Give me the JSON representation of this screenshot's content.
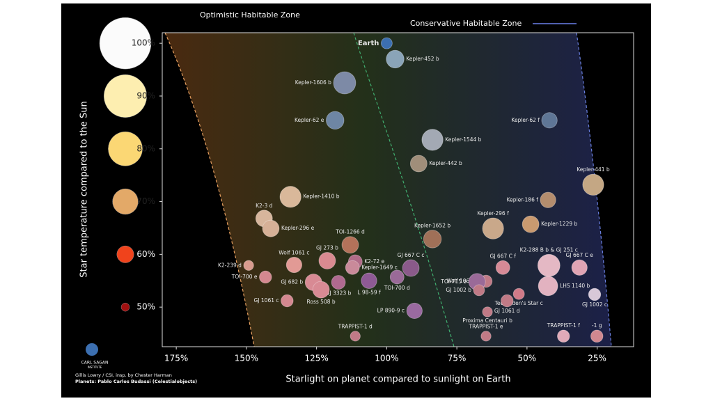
{
  "chart_data": {
    "type": "scatter",
    "zones": [
      "Optimistic Habitable Zone",
      "Conservative Habitable Zone"
    ],
    "xlabel": "Starlight on planet compared to sunlight on Earth",
    "ylabel": "Star temperature compared to the Sun",
    "xlim": [
      180,
      12
    ],
    "ylim": [
      42.5,
      102
    ],
    "xticks": [
      {
        "value": 175,
        "label": "175%"
      },
      {
        "value": 150,
        "label": "150%"
      },
      {
        "value": 125,
        "label": "125%"
      },
      {
        "value": 100,
        "label": "100%"
      },
      {
        "value": 75,
        "label": "75%"
      },
      {
        "value": 50,
        "label": "50%"
      },
      {
        "value": 25,
        "label": "25%"
      }
    ],
    "yticks": [
      {
        "value": 100,
        "label": "100%"
      },
      {
        "value": 90,
        "label": "90%"
      },
      {
        "value": 80,
        "label": "80%"
      },
      {
        "value": 70,
        "label": "70%"
      },
      {
        "value": 60,
        "label": "60%"
      },
      {
        "value": 50,
        "label": "50%"
      }
    ],
    "star_colors": [
      "#fbfbfb",
      "#fdeeb0",
      "#fbd774",
      "#e3a968",
      "#f0431c",
      "#a01010"
    ],
    "labels": [
      "Earth",
      "Kepler-452 b",
      "Kepler-1606 b",
      "Kepler-62 e",
      "Kepler-62 f",
      "Kepler-1544 b",
      "Kepler-442 b",
      "Kepler-441 b",
      "Kepler-1410 b",
      "Kepler-186 f",
      "K2-3 d",
      "Kepler-296 e",
      "TOI-1266 d",
      "Kepler-1652 b",
      "Kepler-296 f",
      "Kepler-1229 b",
      "K2-239 d",
      "Wolf 1061 c",
      "GJ 273 b",
      "K2-72 e",
      "Kepler-1649 c",
      "GJ 667 C c",
      "K2-288 B b & GJ 251 c",
      "GJ 667 C f",
      "GJ 667 C e",
      "TOI-700 e",
      "GJ 682 b",
      "GJ 3323 b",
      "Ross 508 b",
      "L 98-59 f",
      "TOI-700 d",
      "Wolf 1069 b",
      "TOI-715 b",
      "LHS 1140 b",
      "GJ 1002 c",
      "Teegarden's Star c",
      "GJ 1061 c",
      "GJ 1002 b",
      "GJ 1061 d",
      "Proxima Centauri b",
      "LP 890-9 c",
      "TRAPPIST-1 d",
      "TRAPPIST-1 e",
      "TRAPPIST-1 f",
      "-1 g"
    ],
    "x": [
      100,
      97,
      115,
      118.4,
      42,
      83.7,
      88.6,
      26.4,
      134.3,
      42.5,
      143.7,
      141.3,
      113,
      83.7,
      62.1,
      48.7,
      149.2,
      133,
      121.2,
      111.2,
      112.2,
      91.4,
      42.2,
      58.6,
      31.3,
      143.2,
      126.1,
      117.2,
      123.4,
      106.3,
      96.3,
      64.6,
      67.8,
      42.5,
      25.9,
      52.9,
      135.5,
      67.1,
      57.1,
      64.1,
      90.1,
      111.2,
      64.6,
      37,
      25.1
    ],
    "y": [
      100,
      97,
      92.5,
      85.4,
      85.4,
      81.7,
      77.2,
      73.2,
      70.9,
      70.3,
      66.8,
      64.9,
      61.8,
      62.9,
      64.9,
      65.7,
      57.9,
      58,
      58.8,
      58.6,
      57.5,
      57.4,
      57.9,
      57.5,
      57.5,
      55.7,
      54.7,
      54.7,
      53.3,
      55,
      55.7,
      54.9,
      54.8,
      54,
      52.4,
      52.5,
      51.2,
      53.2,
      51.2,
      49.1,
      49.3,
      44.5,
      44.5,
      44.5,
      44.5
    ],
    "sizes": [
      1,
      1.6,
      2,
      1.6,
      1.4,
      1.9,
      1.5,
      1.9,
      1.9,
      1.4,
      1.5,
      1.5,
      1.5,
      1.6,
      1.9,
      1.5,
      0.9,
      1.4,
      1.5,
      1.25,
      1.25,
      1.5,
      2,
      1.25,
      1.4,
      1.1,
      1.5,
      1.25,
      1.5,
      1.4,
      1.25,
      1.1,
      1.5,
      1.75,
      1.1,
      1,
      1.1,
      1,
      1.1,
      0.9,
      1.4,
      0.9,
      0.9,
      1.1,
      1.1
    ],
    "colors": [
      "#3c6fb0",
      "#8aa4b8",
      "#7d8aa6",
      "#6e86a4",
      "#5f7696",
      "#a3a9b4",
      "#a08e7a",
      "#c4a784",
      "#d9b89a",
      "#b48d6e",
      "#d7b59c",
      "#d6b097",
      "#b4725a",
      "#a07058",
      "#c9a88a",
      "#c99a70",
      "#d89a8e",
      "#e29a95",
      "#d98a90",
      "#b06c88",
      "#c98a9a",
      "#8a5a8a",
      "#e4b8c4",
      "#d68a96",
      "#e0a4b4",
      "#d48890",
      "#d88a94",
      "#b06a90",
      "#d88a94",
      "#8e5a94",
      "#9a6a98",
      "#c07a86",
      "#9a6a98",
      "#e2b2c0",
      "#d8c8d8",
      "#d07a88",
      "#d48890",
      "#c07a86",
      "#c07a86",
      "#c07a86",
      "#9a6aa0",
      "#c07a86",
      "#c07a86",
      "#e0aab8",
      "#d08890"
    ]
  },
  "credits": [
    "Gillis Lowry / CSI, insp. by Chester Harman",
    "Planets: Pablo Carlos Budassi (Celestialobjects)"
  ],
  "logo": [
    "CARL SAGAN",
    "INSTITUTE"
  ]
}
